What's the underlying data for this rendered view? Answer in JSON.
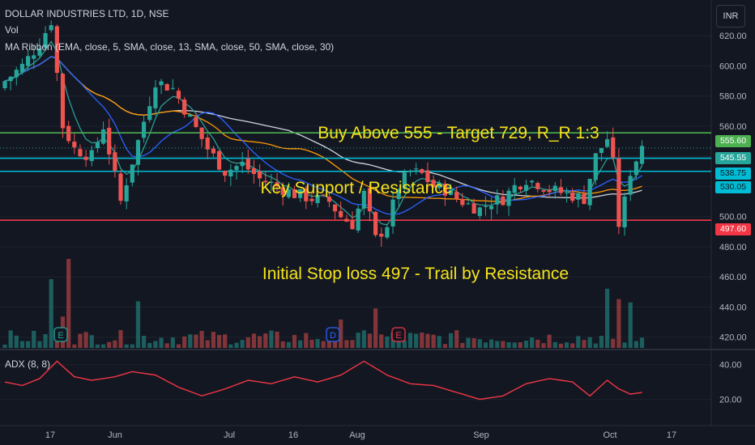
{
  "chart_title": "DOLLAR INDUSTRIES LTD, 1D, NSE",
  "volume_label": "Vol",
  "ma_ribbon_label": "MA Ribbon (EMA, close, 5, SMA, close, 13, SMA, close, 50, SMA, close, 30)",
  "adx_label": "ADX (8, 8)",
  "currency_button": "INR",
  "colors": {
    "background": "#131722",
    "up": "#26a69a",
    "down": "#ef5350",
    "annotation_text": "#f5e31b",
    "target_line": "#4caf50",
    "resistance_line": "#00bcd4",
    "stop_line": "#f23645",
    "ema5": "#2a9d8f",
    "sma13": "#2962ff",
    "sma30": "#ff9800",
    "sma50": "#d1d4dc",
    "adx": "#f23645"
  },
  "annotations": {
    "buy": "Buy Above 555 - Target 729, R_R 1:3",
    "support": "Key Support / Resistance",
    "stop": "Initial Stop loss 497 - Trail by Resistance"
  },
  "price_tags": [
    {
      "label": "555.60",
      "bg": "#4caf50",
      "fg": "#ffffff"
    },
    {
      "label": "545.55",
      "bg": "#26a69a",
      "fg": "#ffffff"
    },
    {
      "label": "538.75",
      "bg": "#00bcd4",
      "fg": "#131722"
    },
    {
      "label": "530.05",
      "bg": "#00bcd4",
      "fg": "#131722"
    },
    {
      "label": "497.60",
      "bg": "#f23645",
      "fg": "#ffffff"
    }
  ],
  "event_markers": [
    {
      "label": "E",
      "date": "May 21",
      "color": "#26a69a"
    },
    {
      "label": "D",
      "date": "Aug 29",
      "color": "#2962ff"
    },
    {
      "label": "E",
      "date": "Sep 03",
      "color": "#f23645"
    }
  ],
  "chart_data": {
    "type": "candlestick",
    "price_axis": {
      "ticks": [
        420,
        440,
        460,
        480,
        500,
        520,
        540,
        560,
        580,
        600,
        620
      ],
      "tick_labels": [
        "420.00",
        "440.00",
        "460.00",
        "480.00",
        "500.00",
        "520.00",
        "540.00",
        "560.00",
        "580.00",
        "600.00",
        "620.00"
      ],
      "range": [
        415,
        640
      ]
    },
    "adx_axis": {
      "ticks": [
        20,
        40
      ],
      "tick_labels": [
        "20.00",
        "40.00"
      ],
      "range": [
        10,
        45
      ]
    },
    "x_axis": {
      "tick_labels": [
        "17",
        "Jun",
        "Jul",
        "16",
        "Aug",
        "Sep",
        "Oct",
        "17"
      ]
    },
    "horizontal_levels": [
      {
        "name": "target-line",
        "value": 555.6
      },
      {
        "name": "resistance-upper",
        "value": 538.75
      },
      {
        "name": "resistance-lower",
        "value": 530.05
      },
      {
        "name": "stop-line",
        "value": 497.6
      }
    ],
    "last_price": 545.55,
    "series_keyframes": [
      [
        0,
        590
      ],
      [
        3,
        600
      ],
      [
        6,
        615
      ],
      [
        8,
        630
      ],
      [
        10,
        560
      ],
      [
        12,
        545
      ],
      [
        15,
        540
      ],
      [
        17,
        560
      ],
      [
        20,
        510
      ],
      [
        23,
        550
      ],
      [
        26,
        590
      ],
      [
        29,
        585
      ],
      [
        32,
        565
      ],
      [
        35,
        545
      ],
      [
        38,
        530
      ],
      [
        41,
        535
      ],
      [
        44,
        525
      ],
      [
        47,
        520
      ],
      [
        50,
        515
      ],
      [
        53,
        512
      ],
      [
        56,
        510
      ],
      [
        58,
        500
      ],
      [
        60,
        495
      ],
      [
        62,
        515
      ],
      [
        64,
        485
      ],
      [
        66,
        495
      ],
      [
        68,
        520
      ],
      [
        70,
        530
      ],
      [
        72,
        528
      ],
      [
        74,
        520
      ],
      [
        76,
        518
      ],
      [
        78,
        512
      ],
      [
        80,
        508
      ],
      [
        82,
        505
      ],
      [
        84,
        510
      ],
      [
        86,
        512
      ],
      [
        88,
        520
      ],
      [
        90,
        525
      ],
      [
        92,
        522
      ],
      [
        94,
        518
      ],
      [
        96,
        516
      ],
      [
        98,
        514
      ],
      [
        100,
        512
      ],
      [
        102,
        540
      ],
      [
        104,
        552
      ],
      [
        105,
        535
      ],
      [
        106,
        495
      ],
      [
        107,
        510
      ],
      [
        108,
        530
      ],
      [
        109,
        538
      ],
      [
        110,
        548
      ]
    ],
    "adx_keyframes": [
      [
        0,
        30
      ],
      [
        3,
        28
      ],
      [
        6,
        32
      ],
      [
        9,
        42
      ],
      [
        12,
        33
      ],
      [
        15,
        31
      ],
      [
        19,
        33
      ],
      [
        22,
        36
      ],
      [
        26,
        34
      ],
      [
        30,
        27
      ],
      [
        34,
        22
      ],
      [
        38,
        26
      ],
      [
        42,
        31
      ],
      [
        46,
        29
      ],
      [
        50,
        33
      ],
      [
        54,
        30
      ],
      [
        58,
        34
      ],
      [
        62,
        42
      ],
      [
        66,
        34
      ],
      [
        70,
        29
      ],
      [
        74,
        28
      ],
      [
        78,
        24
      ],
      [
        82,
        20
      ],
      [
        86,
        22
      ],
      [
        90,
        29
      ],
      [
        94,
        32
      ],
      [
        98,
        30
      ],
      [
        101,
        22
      ],
      [
        104,
        31
      ],
      [
        106,
        26
      ],
      [
        108,
        23
      ],
      [
        110,
        24
      ]
    ]
  }
}
